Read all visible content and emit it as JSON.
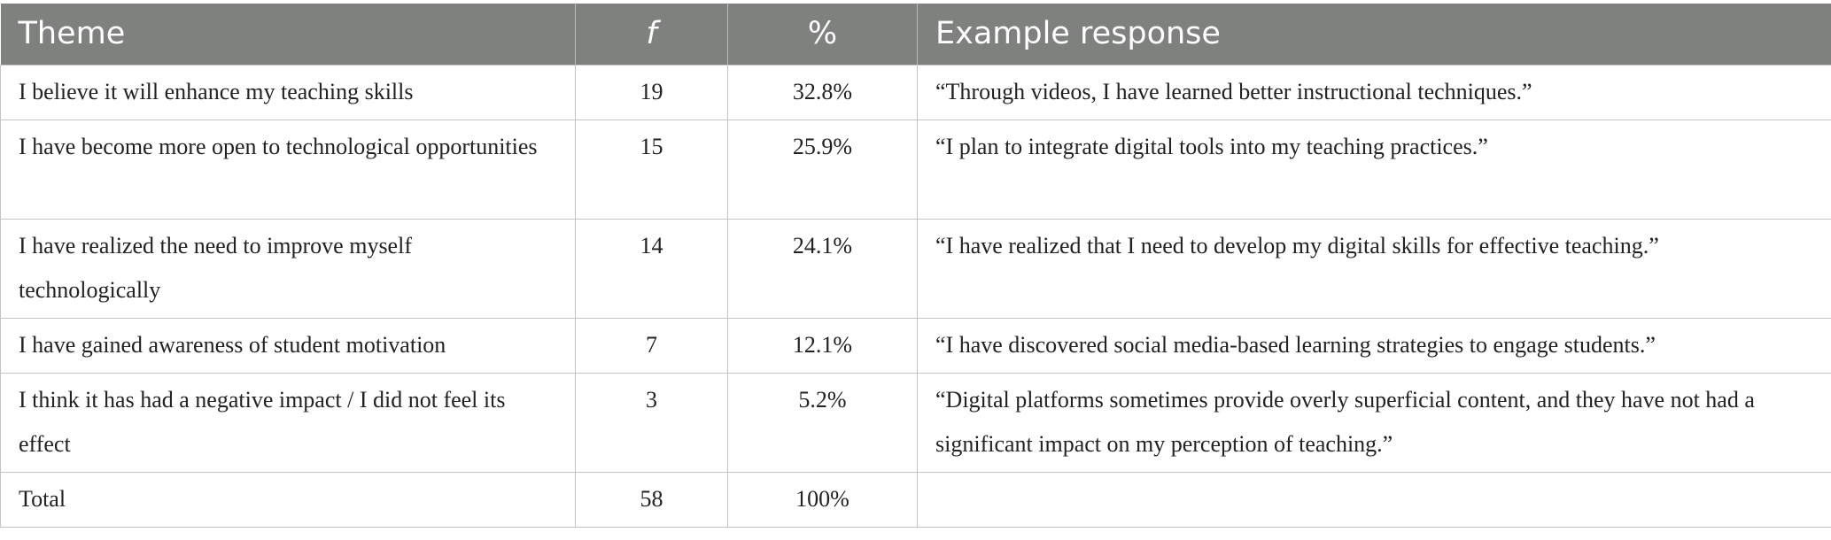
{
  "table": {
    "header": {
      "theme": "Theme",
      "f": "f",
      "percent": "%",
      "example": "Example response"
    },
    "rows": [
      {
        "theme": "I believe it will enhance my teaching skills",
        "f": "19",
        "percent": "32.8%",
        "example": "“Through videos, I have learned better instructional techniques.”"
      },
      {
        "theme": "I have become more open to technological opportunities",
        "f": "15",
        "percent": "25.9%",
        "example": "“I plan to integrate digital tools into my teaching practices.”"
      },
      {
        "theme": "I have realized the need to improve myself technologically",
        "f": "14",
        "percent": "24.1%",
        "example": "“I have realized that I need to develop my digital skills for effective teaching.”"
      },
      {
        "theme": "I have gained awareness of student motivation",
        "f": "7",
        "percent": "12.1%",
        "example": "“I have discovered social media-based learning strategies to engage students.”"
      },
      {
        "theme": "I think it has had a negative impact / I did not feel its effect",
        "f": "3",
        "percent": "5.2%",
        "example": "“Digital platforms sometimes provide overly superficial content, and they have not had a significant impact on my perception of teaching.”"
      },
      {
        "theme": "Total",
        "f": "58",
        "percent": "100%",
        "example": ""
      }
    ]
  }
}
